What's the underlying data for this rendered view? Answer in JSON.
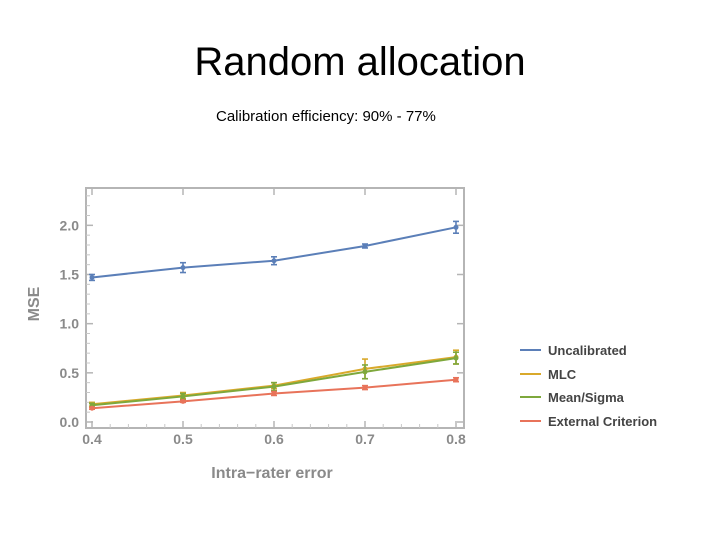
{
  "slide": {
    "title": "Random allocation",
    "subtitle": "Calibration efficiency:  90% - 77%"
  },
  "chart_data": {
    "type": "line",
    "xlabel": "Intra−rater error",
    "ylabel": "MSE",
    "x": [
      0.4,
      0.5,
      0.6,
      0.7,
      0.8
    ],
    "x_tick_labels": [
      "0.4",
      "0.5",
      "0.6",
      "0.7",
      "0.8"
    ],
    "y_tick_labels": [
      "0.0",
      "0.5",
      "1.0",
      "1.5",
      "2.0"
    ],
    "xlim": [
      0.4,
      0.8
    ],
    "ylim": [
      0.0,
      2.4
    ],
    "legend_position": "right",
    "series": [
      {
        "name": "Uncalibrated",
        "color": "#5b7fb8",
        "values": [
          1.47,
          1.57,
          1.64,
          1.79,
          1.98
        ],
        "err": [
          0.03,
          0.05,
          0.04,
          0.02,
          0.06
        ]
      },
      {
        "name": "MLC",
        "color": "#d9a92b",
        "values": [
          0.18,
          0.27,
          0.37,
          0.54,
          0.66
        ],
        "err": [
          0.02,
          0.03,
          0.03,
          0.1,
          0.07
        ]
      },
      {
        "name": "Mean/Sigma",
        "color": "#7ea83c",
        "values": [
          0.17,
          0.26,
          0.36,
          0.51,
          0.65
        ],
        "err": [
          0.02,
          0.03,
          0.04,
          0.07,
          0.06
        ]
      },
      {
        "name": "External Criterion",
        "color": "#e8735a",
        "values": [
          0.14,
          0.21,
          0.29,
          0.35,
          0.43
        ],
        "err": [
          0.01,
          0.01,
          0.02,
          0.02,
          0.02
        ]
      }
    ]
  }
}
